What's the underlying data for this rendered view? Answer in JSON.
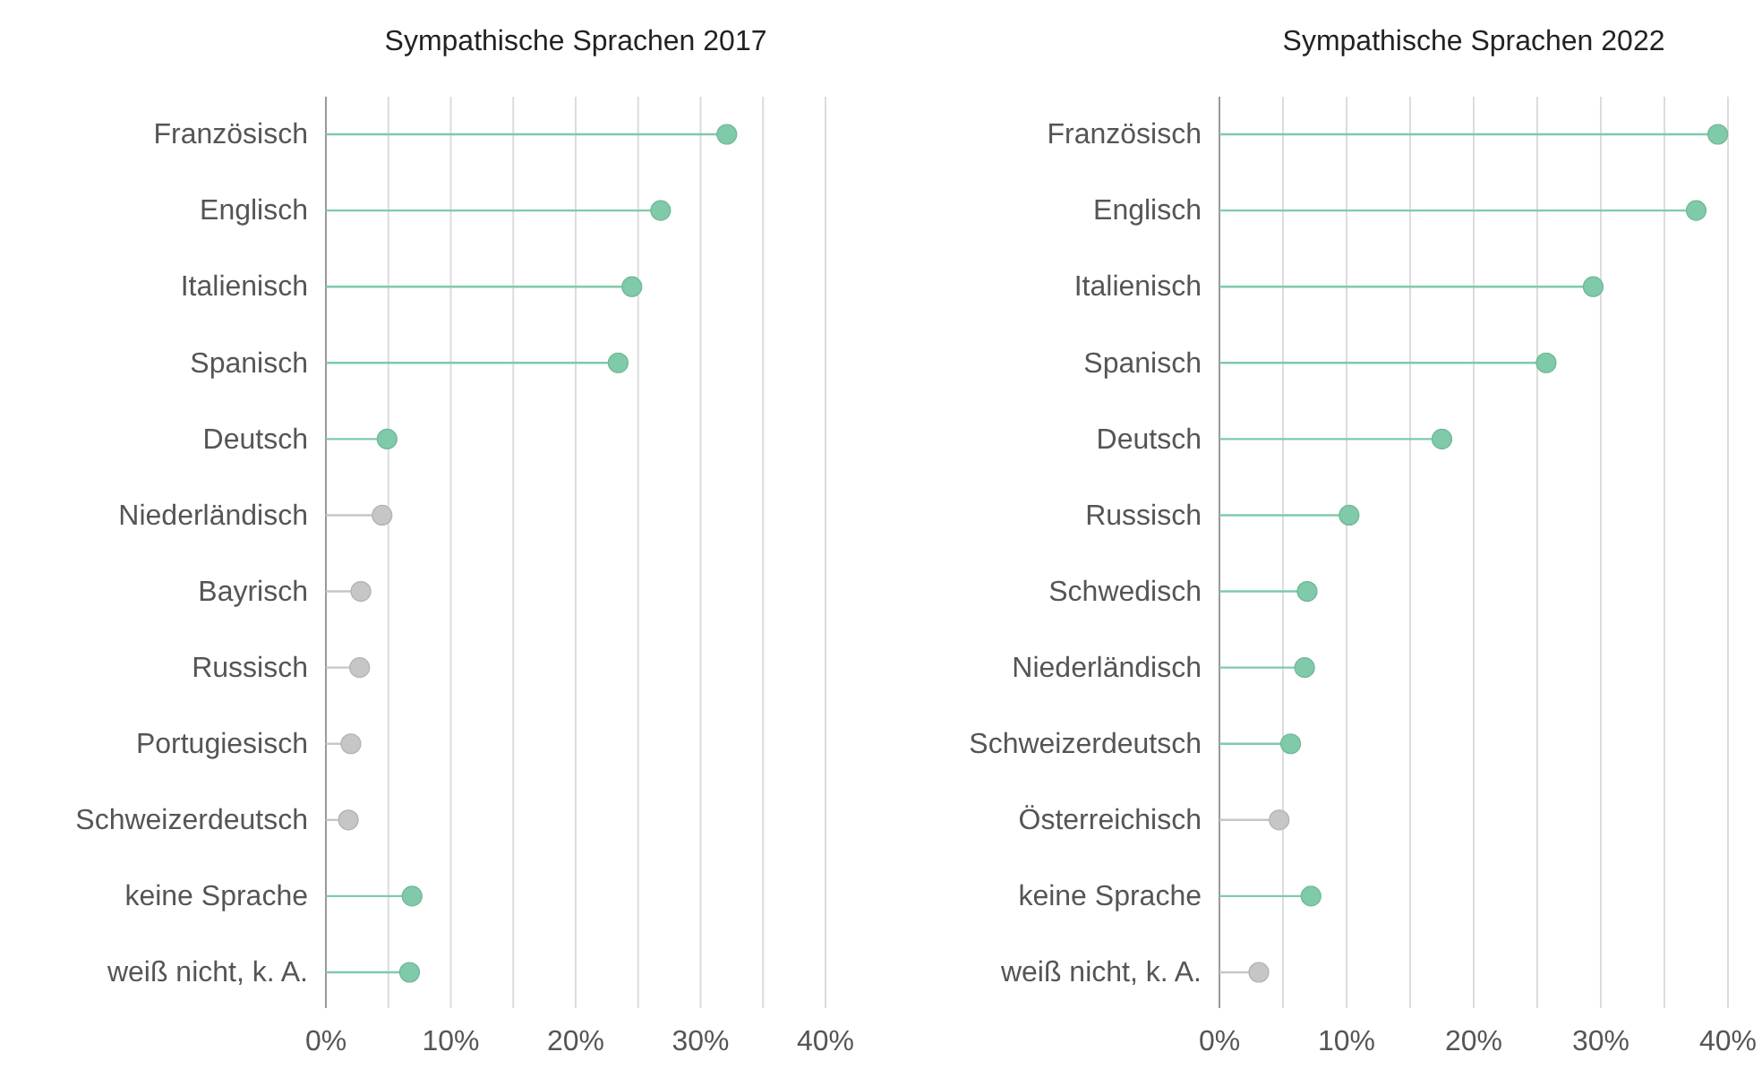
{
  "chart_data": [
    {
      "type": "lollipop",
      "title": "Sympathische Sprachen 2017",
      "orientation": "horizontal",
      "categories": [
        "Französisch",
        "Englisch",
        "Italienisch",
        "Spanisch",
        "Deutsch",
        "Niederländisch",
        "Bayrisch",
        "Russisch",
        "Portugiesisch",
        "Schweizerdeutsch",
        "keine Sprache",
        "weiß nicht, k. A."
      ],
      "values": [
        32.1,
        26.8,
        24.5,
        23.4,
        4.9,
        4.5,
        2.8,
        2.7,
        2.0,
        1.8,
        6.9,
        6.7
      ],
      "colors": [
        "#7fcaa9",
        "#7fcaa9",
        "#7fcaa9",
        "#7fcaa9",
        "#7fcaa9",
        "#c6c6c6",
        "#c6c6c6",
        "#c6c6c6",
        "#c6c6c6",
        "#c6c6c6",
        "#7fcaa9",
        "#7fcaa9"
      ],
      "xlim": [
        0,
        40
      ],
      "xticks": [
        {
          "value": 0,
          "label": "0%"
        },
        {
          "value": 5,
          "label": null
        },
        {
          "value": 10,
          "label": "10%"
        },
        {
          "value": 15,
          "label": null
        },
        {
          "value": 20,
          "label": "20%"
        },
        {
          "value": 25,
          "label": null
        },
        {
          "value": 30,
          "label": "30%"
        },
        {
          "value": 35,
          "label": null
        },
        {
          "value": 40,
          "label": "40%"
        }
      ],
      "grid": "x"
    },
    {
      "type": "lollipop",
      "title": "Sympathische Sprachen 2022",
      "orientation": "horizontal",
      "categories": [
        "Französisch",
        "Englisch",
        "Italienisch",
        "Spanisch",
        "Deutsch",
        "Russisch",
        "Schwedisch",
        "Niederländisch",
        "Schweizerdeutsch",
        "Österreichisch",
        "keine Sprache",
        "weiß nicht, k. A."
      ],
      "values": [
        39.2,
        37.5,
        29.4,
        25.7,
        17.5,
        10.2,
        6.9,
        6.7,
        5.6,
        4.7,
        7.2,
        3.1
      ],
      "colors": [
        "#7fcaa9",
        "#7fcaa9",
        "#7fcaa9",
        "#7fcaa9",
        "#7fcaa9",
        "#7fcaa9",
        "#7fcaa9",
        "#7fcaa9",
        "#7fcaa9",
        "#c6c6c6",
        "#7fcaa9",
        "#c6c6c6"
      ],
      "xlim": [
        0,
        40
      ],
      "xticks": [
        {
          "value": 0,
          "label": "0%"
        },
        {
          "value": 5,
          "label": null
        },
        {
          "value": 10,
          "label": "10%"
        },
        {
          "value": 15,
          "label": null
        },
        {
          "value": 20,
          "label": "20%"
        },
        {
          "value": 25,
          "label": null
        },
        {
          "value": 30,
          "label": "30%"
        },
        {
          "value": 35,
          "label": null
        },
        {
          "value": 40,
          "label": "40%"
        }
      ],
      "grid": "x"
    }
  ]
}
